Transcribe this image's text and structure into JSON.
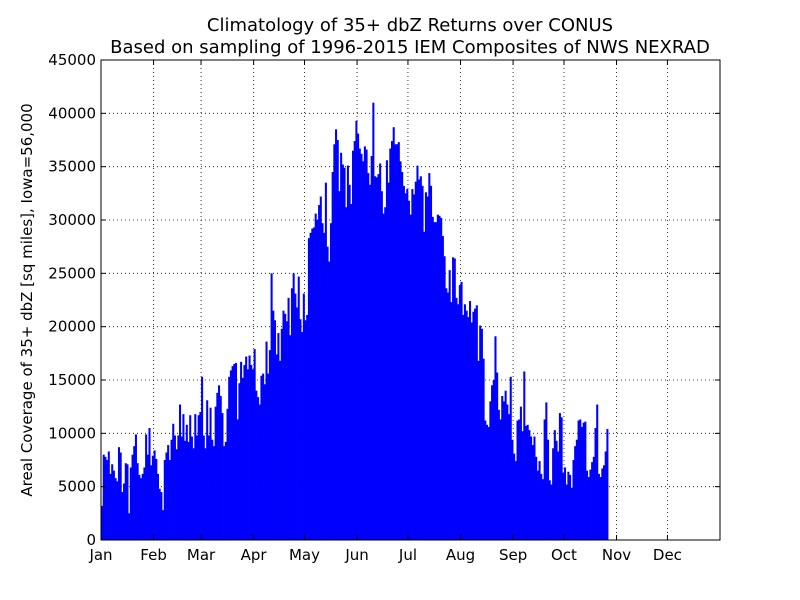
{
  "chart_data": {
    "type": "bar",
    "title": "Climatology of 35+ dbZ Returns over CONUS",
    "subtitle": "Based on sampling of 1996-2015 IEM Composites of NWS NEXRAD",
    "xlabel": "",
    "ylabel": "Areal Coverage of 35+ dbZ [sq miles], Iowa=56,000",
    "ylim": [
      0,
      45000
    ],
    "xlim": [
      1,
      366
    ],
    "grid": true,
    "bar_color": "#0000ff",
    "yticks": [
      0,
      5000,
      10000,
      15000,
      20000,
      25000,
      30000,
      35000,
      40000,
      45000
    ],
    "xticks": [
      {
        "label": "Jan",
        "day": 1
      },
      {
        "label": "Feb",
        "day": 32
      },
      {
        "label": "Mar",
        "day": 60
      },
      {
        "label": "Apr",
        "day": 91
      },
      {
        "label": "May",
        "day": 121
      },
      {
        "label": "Jun",
        "day": 152
      },
      {
        "label": "Jul",
        "day": 182
      },
      {
        "label": "Aug",
        "day": 213
      },
      {
        "label": "Sep",
        "day": 244
      },
      {
        "label": "Oct",
        "day": 274
      },
      {
        "label": "Nov",
        "day": 305
      },
      {
        "label": "Dec",
        "day": 335
      }
    ],
    "series": [
      {
        "values": [
          3200,
          8000,
          7800,
          7500,
          8300,
          6200,
          7100,
          6500,
          5800,
          5500,
          8700,
          8200,
          4500,
          5300,
          7200,
          7100,
          2500,
          6800,
          8000,
          8800,
          9900,
          7200,
          6100,
          5800,
          6200,
          6800,
          9900,
          8000,
          10500,
          7000,
          7900,
          8400,
          7600,
          6200,
          4800,
          4500,
          2800,
          7500,
          8200,
          8900,
          7500,
          9400,
          10900,
          9800,
          8500,
          9800,
          12700,
          9700,
          11800,
          9300,
          10800,
          9200,
          11700,
          9700,
          8600,
          11800,
          9800,
          11700,
          12000,
          15300,
          9800,
          8600,
          13100,
          9800,
          12400,
          9400,
          8800,
          12500,
          13800,
          14500,
          13500,
          11900,
          8800,
          9200,
          12300,
          15300,
          15900,
          16300,
          16500,
          16600,
          11300,
          14700,
          16700,
          15200,
          16400,
          17200,
          16000,
          17300,
          16400,
          16000,
          17900,
          14000,
          13400,
          12700,
          15400,
          15600,
          14600,
          18600,
          15600,
          17800,
          25000,
          21500,
          20600,
          17400,
          19400,
          16800,
          19800,
          21500,
          21200,
          20500,
          22700,
          19200,
          23600,
          25000,
          23100,
          21800,
          24700,
          20700,
          19500,
          23100,
          20600,
          21100,
          28300,
          28800,
          29200,
          29300,
          30600,
          30000,
          31400,
          32200,
          29700,
          28800,
          33500,
          27500,
          26100,
          29700,
          34500,
          37100,
          38500,
          37500,
          32700,
          36300,
          35200,
          34900,
          31200,
          35100,
          33300,
          31500,
          36500,
          37400,
          39300,
          38100,
          36700,
          36200,
          35500,
          36900,
          36600,
          34400,
          33300,
          36000,
          41000,
          34100,
          34000,
          34300,
          35300,
          32700,
          30600,
          31200,
          35600,
          33500,
          36700,
          37400,
          38700,
          37100,
          37100,
          37300,
          35500,
          34500,
          33200,
          32500,
          32900,
          31800,
          30500,
          32900,
          32400,
          33600,
          35100,
          33800,
          34100,
          33200,
          28900,
          32600,
          32200,
          34400,
          33200,
          30300,
          29800,
          29800,
          30500,
          30400,
          30200,
          28500,
          26600,
          23600,
          23200,
          25300,
          22300,
          26500,
          26400,
          22700,
          22100,
          23900,
          24200,
          21100,
          22100,
          21500,
          20900,
          22400,
          20400,
          21400,
          21700,
          22000,
          16800,
          20100,
          19800,
          17000,
          11200,
          10800,
          10600,
          13000,
          14500,
          15000,
          19100,
          15700,
          12200,
          11300,
          13500,
          13000,
          14000,
          12700,
          11800,
          15300,
          9400,
          8100,
          7400,
          11200,
          11300,
          12500,
          10200,
          15800,
          10700,
          10800,
          10300,
          9700,
          8900,
          9700,
          7800,
          6500,
          7400,
          6200,
          5700,
          11300,
          12900,
          9400,
          5600,
          5200,
          8600,
          10300,
          9300,
          8300,
          11900,
          11500,
          6300,
          6800,
          5200,
          6400,
          6100,
          4900,
          7500,
          8800,
          9400,
          11200,
          11300,
          10600,
          11000,
          11100,
          6500,
          5900,
          6600,
          7300,
          7800,
          10500,
          12700,
          6200,
          5900,
          6700,
          7000,
          8300,
          10400
        ]
      }
    ]
  }
}
